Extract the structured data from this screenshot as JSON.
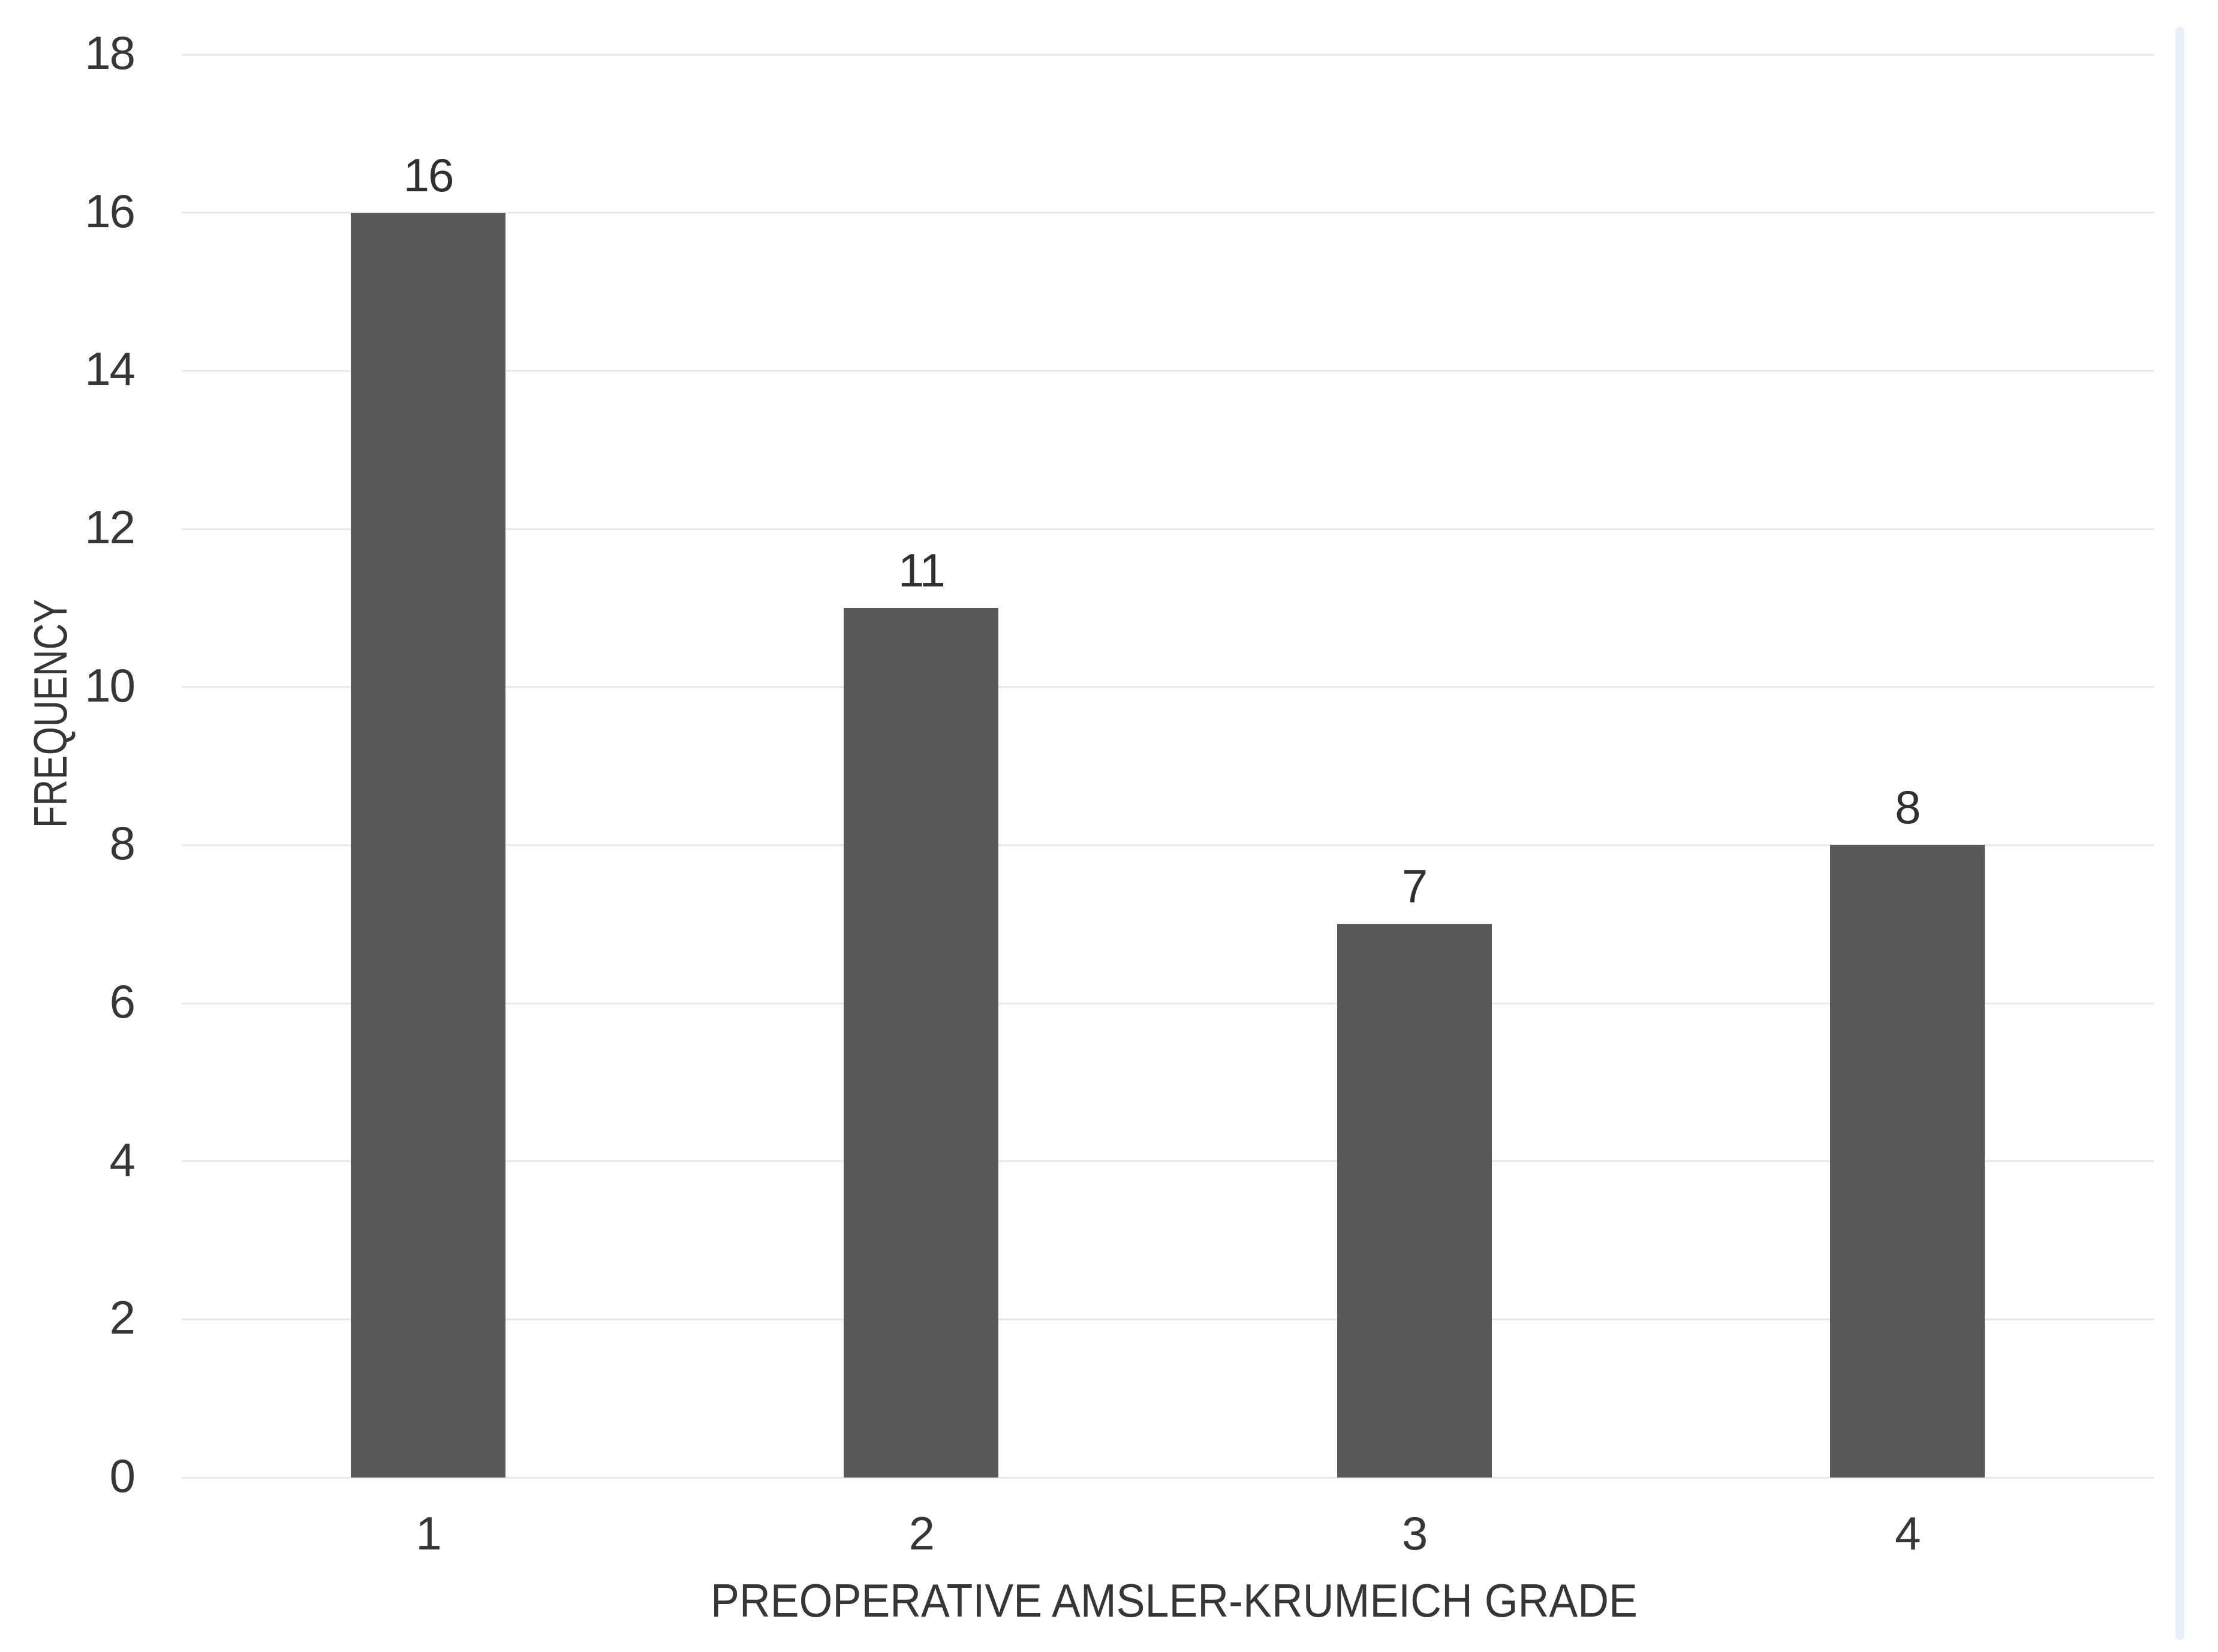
{
  "chart_data": {
    "type": "bar",
    "categories": [
      "1",
      "2",
      "3",
      "4"
    ],
    "values": [
      16,
      11,
      7,
      8
    ],
    "data_labels": [
      "16",
      "11",
      "7",
      "8"
    ],
    "title": "",
    "xlabel": "PREOPERATIVE AMSLER-KRUMEICH GRADE",
    "ylabel": "FREQUENCY",
    "ylim": [
      0,
      18
    ],
    "yticks": [
      0,
      2,
      4,
      6,
      8,
      10,
      12,
      14,
      16,
      18
    ],
    "grid": "horizontal-only",
    "legend": "none",
    "bar_color": "#595959",
    "gridline_color": "#e9e9e9",
    "text_color": "#363636",
    "background_color": "#ffffff"
  },
  "page": {
    "scrollbar_color": "#e9eff9"
  }
}
